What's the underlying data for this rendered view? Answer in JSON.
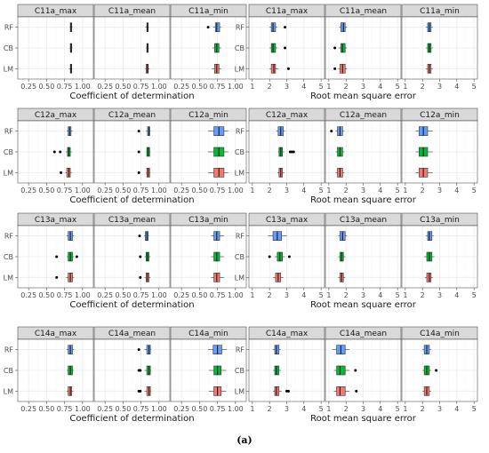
{
  "figure": {
    "caption": "(a)"
  },
  "chart_data": {
    "type": "boxplot",
    "facet_rows": [
      "C11a",
      "C12a",
      "C13a",
      "C14a"
    ],
    "categories": [
      "RF",
      "CB",
      "LM"
    ],
    "colors": {
      "RF": "#619cff",
      "CB": "#00ba38",
      "LM": "#f8766d"
    },
    "grid": true,
    "metrics": [
      {
        "key": "r2",
        "xlabel": "Coefficient of determination",
        "xlim": [
          0.1,
          1.15
        ],
        "ticks": [
          0.25,
          0.5,
          0.75,
          1.0
        ],
        "tick_labels": [
          "0.25",
          "0.50",
          "0.75",
          "1.00"
        ]
      },
      {
        "key": "rmse",
        "xlabel": "Root mean square error",
        "xlim": [
          0.8,
          5.2
        ],
        "ticks": [
          1,
          2,
          3,
          4,
          5
        ],
        "tick_labels": [
          "1",
          "2",
          "3",
          "4",
          "5"
        ]
      }
    ],
    "panels": [
      {
        "row": 0,
        "metric": "r2",
        "stat": "max",
        "title": "C11a_max",
        "boxes": {
          "RF": {
            "min": 0.82,
            "q1": 0.83,
            "median": 0.84,
            "q3": 0.85,
            "max": 0.86,
            "outliers": []
          },
          "CB": {
            "min": 0.82,
            "q1": 0.83,
            "median": 0.84,
            "q3": 0.85,
            "max": 0.86,
            "outliers": []
          },
          "LM": {
            "min": 0.81,
            "q1": 0.83,
            "median": 0.84,
            "q3": 0.85,
            "max": 0.86,
            "outliers": []
          }
        }
      },
      {
        "row": 0,
        "metric": "r2",
        "stat": "mean",
        "title": "C11a_mean",
        "boxes": {
          "RF": {
            "min": 0.81,
            "q1": 0.83,
            "median": 0.84,
            "q3": 0.85,
            "max": 0.86,
            "outliers": []
          },
          "CB": {
            "min": 0.82,
            "q1": 0.83,
            "median": 0.84,
            "q3": 0.85,
            "max": 0.86,
            "outliers": []
          },
          "LM": {
            "min": 0.81,
            "q1": 0.82,
            "median": 0.84,
            "q3": 0.85,
            "max": 0.87,
            "outliers": []
          }
        }
      },
      {
        "row": 0,
        "metric": "r2",
        "stat": "min",
        "title": "C11a_min",
        "boxes": {
          "RF": {
            "min": 0.69,
            "q1": 0.72,
            "median": 0.74,
            "q3": 0.78,
            "max": 0.8,
            "outliers": [
              0.62
            ]
          },
          "CB": {
            "min": 0.68,
            "q1": 0.71,
            "median": 0.74,
            "q3": 0.77,
            "max": 0.8,
            "outliers": []
          },
          "LM": {
            "min": 0.67,
            "q1": 0.71,
            "median": 0.74,
            "q3": 0.77,
            "max": 0.8,
            "outliers": []
          }
        }
      },
      {
        "row": 0,
        "metric": "rmse",
        "stat": "max",
        "title": "C11a_max",
        "boxes": {
          "RF": {
            "min": 2.0,
            "q1": 2.1,
            "median": 2.2,
            "q3": 2.35,
            "max": 2.45,
            "outliers": [
              2.9
            ]
          },
          "CB": {
            "min": 2.0,
            "q1": 2.1,
            "median": 2.2,
            "q3": 2.35,
            "max": 2.45,
            "outliers": [
              2.9
            ]
          },
          "LM": {
            "min": 2.0,
            "q1": 2.1,
            "median": 2.25,
            "q3": 2.35,
            "max": 2.5,
            "outliers": [
              3.1
            ]
          }
        }
      },
      {
        "row": 0,
        "metric": "rmse",
        "stat": "mean",
        "title": "C11a_mean",
        "boxes": {
          "RF": {
            "min": 1.6,
            "q1": 1.7,
            "median": 1.85,
            "q3": 1.95,
            "max": 2.05,
            "outliers": []
          },
          "CB": {
            "min": 1.55,
            "q1": 1.7,
            "median": 1.8,
            "q3": 1.95,
            "max": 2.05,
            "outliers": [
              1.35
            ]
          },
          "LM": {
            "min": 1.55,
            "q1": 1.65,
            "median": 1.8,
            "q3": 1.95,
            "max": 2.05,
            "outliers": [
              1.35
            ]
          }
        }
      },
      {
        "row": 0,
        "metric": "rmse",
        "stat": "min",
        "title": "C11a_min",
        "boxes": {
          "RF": {
            "min": 2.2,
            "q1": 2.3,
            "median": 2.4,
            "q3": 2.5,
            "max": 2.6,
            "outliers": []
          },
          "CB": {
            "min": 2.2,
            "q1": 2.3,
            "median": 2.4,
            "q3": 2.5,
            "max": 2.6,
            "outliers": []
          },
          "LM": {
            "min": 2.2,
            "q1": 2.3,
            "median": 2.4,
            "q3": 2.5,
            "max": 2.6,
            "outliers": []
          }
        }
      },
      {
        "row": 1,
        "metric": "r2",
        "stat": "max",
        "title": "C12a_max",
        "boxes": {
          "RF": {
            "min": 0.78,
            "q1": 0.8,
            "median": 0.82,
            "q3": 0.84,
            "max": 0.86,
            "outliers": []
          },
          "CB": {
            "min": 0.77,
            "q1": 0.79,
            "median": 0.81,
            "q3": 0.83,
            "max": 0.85,
            "outliers": [
              0.61,
              0.69
            ]
          },
          "LM": {
            "min": 0.76,
            "q1": 0.78,
            "median": 0.81,
            "q3": 0.83,
            "max": 0.85,
            "outliers": [
              0.7
            ]
          }
        }
      },
      {
        "row": 1,
        "metric": "r2",
        "stat": "mean",
        "title": "C12a_mean",
        "boxes": {
          "RF": {
            "min": 0.82,
            "q1": 0.84,
            "median": 0.86,
            "q3": 0.87,
            "max": 0.88,
            "outliers": [
              0.72
            ]
          },
          "CB": {
            "min": 0.82,
            "q1": 0.83,
            "median": 0.85,
            "q3": 0.87,
            "max": 0.88,
            "outliers": [
              0.72
            ]
          },
          "LM": {
            "min": 0.82,
            "q1": 0.83,
            "median": 0.85,
            "q3": 0.87,
            "max": 0.88,
            "outliers": [
              0.72
            ]
          }
        }
      },
      {
        "row": 1,
        "metric": "r2",
        "stat": "min",
        "title": "C12a_min",
        "boxes": {
          "RF": {
            "min": 0.62,
            "q1": 0.7,
            "median": 0.77,
            "q3": 0.84,
            "max": 0.9,
            "outliers": []
          },
          "CB": {
            "min": 0.62,
            "q1": 0.7,
            "median": 0.77,
            "q3": 0.84,
            "max": 0.9,
            "outliers": []
          },
          "LM": {
            "min": 0.62,
            "q1": 0.7,
            "median": 0.77,
            "q3": 0.84,
            "max": 0.9,
            "outliers": []
          }
        }
      },
      {
        "row": 1,
        "metric": "rmse",
        "stat": "max",
        "title": "C12a_max",
        "boxes": {
          "RF": {
            "min": 2.4,
            "q1": 2.5,
            "median": 2.65,
            "q3": 2.8,
            "max": 2.9,
            "outliers": []
          },
          "CB": {
            "min": 2.5,
            "q1": 2.55,
            "median": 2.65,
            "q3": 2.75,
            "max": 2.85,
            "outliers": [
              3.2,
              3.3,
              3.4
            ]
          },
          "LM": {
            "min": 2.45,
            "q1": 2.55,
            "median": 2.65,
            "q3": 2.75,
            "max": 2.85,
            "outliers": []
          }
        }
      },
      {
        "row": 1,
        "metric": "rmse",
        "stat": "mean",
        "title": "C12a_mean",
        "boxes": {
          "RF": {
            "min": 1.4,
            "q1": 1.5,
            "median": 1.65,
            "q3": 1.8,
            "max": 1.9,
            "outliers": [
              1.15
            ]
          },
          "CB": {
            "min": 1.4,
            "q1": 1.5,
            "median": 1.65,
            "q3": 1.8,
            "max": 1.9,
            "outliers": []
          },
          "LM": {
            "min": 1.4,
            "q1": 1.5,
            "median": 1.65,
            "q3": 1.8,
            "max": 1.9,
            "outliers": []
          }
        }
      },
      {
        "row": 1,
        "metric": "rmse",
        "stat": "min",
        "title": "C12a_min",
        "boxes": {
          "RF": {
            "min": 1.6,
            "q1": 1.8,
            "median": 2.05,
            "q3": 2.3,
            "max": 2.6,
            "outliers": []
          },
          "CB": {
            "min": 1.6,
            "q1": 1.8,
            "median": 2.05,
            "q3": 2.3,
            "max": 2.6,
            "outliers": []
          },
          "LM": {
            "min": 1.6,
            "q1": 1.8,
            "median": 2.05,
            "q3": 2.3,
            "max": 2.6,
            "outliers": []
          }
        }
      },
      {
        "row": 2,
        "metric": "r2",
        "stat": "max",
        "title": "C13a_max",
        "boxes": {
          "RF": {
            "min": 0.78,
            "q1": 0.8,
            "median": 0.83,
            "q3": 0.86,
            "max": 0.88,
            "outliers": []
          },
          "CB": {
            "min": 0.78,
            "q1": 0.8,
            "median": 0.83,
            "q3": 0.86,
            "max": 0.88,
            "outliers": [
              0.64,
              0.92
            ]
          },
          "LM": {
            "min": 0.77,
            "q1": 0.8,
            "median": 0.83,
            "q3": 0.86,
            "max": 0.88,
            "outliers": [
              0.64
            ]
          }
        }
      },
      {
        "row": 2,
        "metric": "r2",
        "stat": "mean",
        "title": "C13a_mean",
        "boxes": {
          "RF": {
            "min": 0.79,
            "q1": 0.81,
            "median": 0.83,
            "q3": 0.85,
            "max": 0.86,
            "outliers": [
              0.73
            ]
          },
          "CB": {
            "min": 0.8,
            "q1": 0.82,
            "median": 0.84,
            "q3": 0.86,
            "max": 0.88,
            "outliers": [
              0.74
            ]
          },
          "LM": {
            "min": 0.8,
            "q1": 0.82,
            "median": 0.84,
            "q3": 0.86,
            "max": 0.88,
            "outliers": [
              0.74
            ]
          }
        }
      },
      {
        "row": 2,
        "metric": "r2",
        "stat": "min",
        "title": "C13a_min",
        "boxes": {
          "RF": {
            "min": 0.66,
            "q1": 0.7,
            "median": 0.74,
            "q3": 0.78,
            "max": 0.84,
            "outliers": []
          },
          "CB": {
            "min": 0.66,
            "q1": 0.7,
            "median": 0.74,
            "q3": 0.78,
            "max": 0.84,
            "outliers": []
          },
          "LM": {
            "min": 0.66,
            "q1": 0.7,
            "median": 0.74,
            "q3": 0.78,
            "max": 0.84,
            "outliers": []
          }
        }
      },
      {
        "row": 2,
        "metric": "rmse",
        "stat": "max",
        "title": "C13a_max",
        "boxes": {
          "RF": {
            "min": 1.9,
            "q1": 2.2,
            "median": 2.45,
            "q3": 2.7,
            "max": 3.0,
            "outliers": []
          },
          "CB": {
            "min": 2.3,
            "q1": 2.45,
            "median": 2.6,
            "q3": 2.75,
            "max": 2.9,
            "outliers": [
              2.0,
              3.15
            ]
          },
          "LM": {
            "min": 2.2,
            "q1": 2.35,
            "median": 2.5,
            "q3": 2.65,
            "max": 2.8,
            "outliers": []
          }
        }
      },
      {
        "row": 2,
        "metric": "rmse",
        "stat": "mean",
        "title": "C13a_mean",
        "boxes": {
          "RF": {
            "min": 1.55,
            "q1": 1.65,
            "median": 1.8,
            "q3": 1.95,
            "max": 2.05,
            "outliers": []
          },
          "CB": {
            "min": 1.55,
            "q1": 1.65,
            "median": 1.75,
            "q3": 1.85,
            "max": 1.95,
            "outliers": []
          },
          "LM": {
            "min": 1.55,
            "q1": 1.65,
            "median": 1.75,
            "q3": 1.85,
            "max": 1.95,
            "outliers": []
          }
        }
      },
      {
        "row": 2,
        "metric": "rmse",
        "stat": "min",
        "title": "C13a_min",
        "boxes": {
          "RF": {
            "min": 2.2,
            "q1": 2.3,
            "median": 2.4,
            "q3": 2.55,
            "max": 2.65,
            "outliers": []
          },
          "CB": {
            "min": 2.1,
            "q1": 2.25,
            "median": 2.4,
            "q3": 2.55,
            "max": 2.7,
            "outliers": []
          },
          "LM": {
            "min": 2.15,
            "q1": 2.25,
            "median": 2.4,
            "q3": 2.5,
            "max": 2.6,
            "outliers": []
          }
        }
      },
      {
        "row": 3,
        "metric": "r2",
        "stat": "max",
        "title": "C14a_max",
        "boxes": {
          "RF": {
            "min": 0.78,
            "q1": 0.8,
            "median": 0.83,
            "q3": 0.86,
            "max": 0.88,
            "outliers": []
          },
          "CB": {
            "min": 0.78,
            "q1": 0.8,
            "median": 0.83,
            "q3": 0.86,
            "max": 0.88,
            "outliers": []
          },
          "LM": {
            "min": 0.78,
            "q1": 0.8,
            "median": 0.83,
            "q3": 0.85,
            "max": 0.87,
            "outliers": []
          }
        }
      },
      {
        "row": 3,
        "metric": "r2",
        "stat": "mean",
        "title": "C14a_mean",
        "boxes": {
          "RF": {
            "min": 0.8,
            "q1": 0.83,
            "median": 0.86,
            "q3": 0.88,
            "max": 0.89,
            "outliers": [
              0.72
            ]
          },
          "CB": {
            "min": 0.8,
            "q1": 0.83,
            "median": 0.86,
            "q3": 0.88,
            "max": 0.89,
            "outliers": [
              0.72,
              0.74
            ]
          },
          "LM": {
            "min": 0.8,
            "q1": 0.83,
            "median": 0.86,
            "q3": 0.88,
            "max": 0.89,
            "outliers": [
              0.72,
              0.74
            ]
          }
        }
      },
      {
        "row": 3,
        "metric": "r2",
        "stat": "min",
        "title": "C14a_min",
        "boxes": {
          "RF": {
            "min": 0.62,
            "q1": 0.69,
            "median": 0.75,
            "q3": 0.81,
            "max": 0.88,
            "outliers": []
          },
          "CB": {
            "min": 0.63,
            "q1": 0.7,
            "median": 0.75,
            "q3": 0.8,
            "max": 0.87,
            "outliers": []
          },
          "LM": {
            "min": 0.63,
            "q1": 0.7,
            "median": 0.75,
            "q3": 0.8,
            "max": 0.87,
            "outliers": []
          }
        }
      },
      {
        "row": 3,
        "metric": "rmse",
        "stat": "max",
        "title": "C14a_max",
        "boxes": {
          "RF": {
            "min": 2.2,
            "q1": 2.3,
            "median": 2.4,
            "q3": 2.55,
            "max": 2.65,
            "outliers": []
          },
          "CB": {
            "min": 2.2,
            "q1": 2.3,
            "median": 2.4,
            "q3": 2.55,
            "max": 2.65,
            "outliers": []
          },
          "LM": {
            "min": 2.2,
            "q1": 2.3,
            "median": 2.4,
            "q3": 2.55,
            "max": 2.7,
            "outliers": [
              3.0,
              3.1
            ]
          }
        }
      },
      {
        "row": 3,
        "metric": "rmse",
        "stat": "mean",
        "title": "C14a_mean",
        "boxes": {
          "RF": {
            "min": 1.2,
            "q1": 1.45,
            "median": 1.7,
            "q3": 1.95,
            "max": 2.2,
            "outliers": []
          },
          "CB": {
            "min": 1.3,
            "q1": 1.45,
            "median": 1.65,
            "q3": 1.95,
            "max": 2.2,
            "outliers": [
              2.55
            ]
          },
          "LM": {
            "min": 1.3,
            "q1": 1.45,
            "median": 1.65,
            "q3": 1.95,
            "max": 2.2,
            "outliers": [
              2.6
            ]
          }
        }
      },
      {
        "row": 3,
        "metric": "rmse",
        "stat": "min",
        "title": "C14a_min",
        "boxes": {
          "RF": {
            "min": 2.0,
            "q1": 2.1,
            "median": 2.25,
            "q3": 2.4,
            "max": 2.5,
            "outliers": []
          },
          "CB": {
            "min": 2.0,
            "q1": 2.1,
            "median": 2.25,
            "q3": 2.4,
            "max": 2.5,
            "outliers": [
              2.8
            ]
          },
          "LM": {
            "min": 2.0,
            "q1": 2.1,
            "median": 2.25,
            "q3": 2.4,
            "max": 2.5,
            "outliers": []
          }
        }
      }
    ]
  }
}
